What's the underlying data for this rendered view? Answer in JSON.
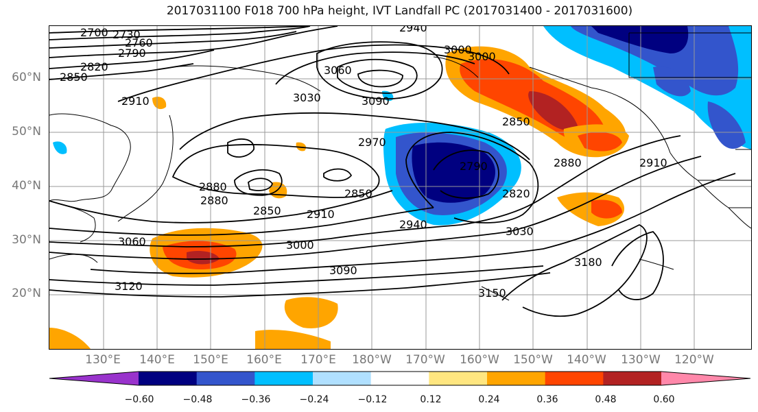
{
  "title": "2017031100 F018 700 hPa height, IVT Landfall PC (2017031400 - 2017031600)",
  "lat_labels": [
    "60°N",
    "50°N",
    "40°N",
    "30°N",
    "20°N"
  ],
  "lon_labels": [
    "130°E",
    "140°E",
    "150°E",
    "160°E",
    "170°E",
    "180°W",
    "170°W",
    "160°W",
    "150°W",
    "140°W",
    "130°W",
    "120°W"
  ],
  "contour_labels": [
    "2700",
    "2730",
    "2760",
    "2790",
    "2820",
    "2850",
    "2910",
    "2940",
    "3060",
    "3090",
    "3030",
    "3000",
    "2970",
    "2880",
    "2850",
    "2910",
    "2850",
    "2940",
    "2790",
    "2820",
    "2850",
    "2880",
    "2910",
    "3030",
    "3000",
    "3060",
    "3120",
    "3090",
    "3150",
    "3180",
    "3000",
    "2880"
  ],
  "colorbar": {
    "colors": [
      "#9933cc",
      "#000080",
      "#3355cc",
      "#00bfff",
      "#b0e0ff",
      "#ffffff",
      "#ffe680",
      "#ffa500",
      "#ff4500",
      "#b22222",
      "#ff88aa"
    ],
    "ticks": [
      "−0.60",
      "−0.48",
      "−0.36",
      "−0.24",
      "−0.12",
      "0.12",
      "0.24",
      "0.36",
      "0.48",
      "0.60"
    ]
  }
}
